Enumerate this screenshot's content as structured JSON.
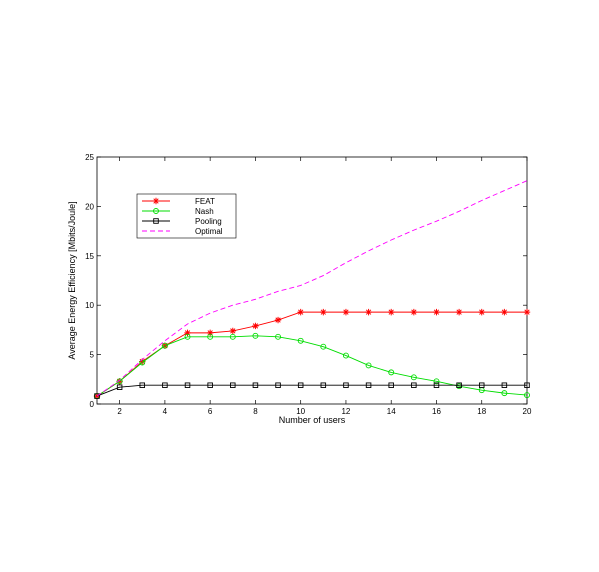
{
  "chart_data": {
    "type": "line",
    "title": "",
    "xlabel": "Number of users",
    "ylabel": "Average Energy Efficiency [Mbits/Joule]",
    "xlim": [
      1,
      20
    ],
    "ylim": [
      0,
      25
    ],
    "xticks": [
      2,
      4,
      6,
      8,
      10,
      12,
      14,
      16,
      18,
      20
    ],
    "yticks": [
      0,
      5,
      10,
      15,
      20,
      25
    ],
    "grid": false,
    "legend_position": "top-left",
    "x": [
      1,
      2,
      3,
      4,
      5,
      6,
      7,
      8,
      9,
      10,
      11,
      12,
      13,
      14,
      15,
      16,
      17,
      18,
      19,
      20
    ],
    "series": [
      {
        "name": "FEAT",
        "color": "#ff0000",
        "marker": "star",
        "dash": "solid",
        "values": [
          0.8,
          2.3,
          4.3,
          5.9,
          7.2,
          7.2,
          7.4,
          7.9,
          8.5,
          9.3,
          9.3,
          9.3,
          9.3,
          9.3,
          9.3,
          9.3,
          9.3,
          9.3,
          9.3,
          9.3
        ]
      },
      {
        "name": "Nash",
        "color": "#00dd00",
        "marker": "circle",
        "dash": "solid",
        "values": [
          0.8,
          2.3,
          4.2,
          5.9,
          6.8,
          6.8,
          6.8,
          6.9,
          6.8,
          6.4,
          5.8,
          4.9,
          3.9,
          3.2,
          2.7,
          2.3,
          1.8,
          1.4,
          1.1,
          0.9
        ]
      },
      {
        "name": "Pooling",
        "color": "#000000",
        "marker": "square",
        "dash": "solid",
        "values": [
          0.8,
          1.7,
          1.9,
          1.9,
          1.9,
          1.9,
          1.9,
          1.9,
          1.9,
          1.9,
          1.9,
          1.9,
          1.9,
          1.9,
          1.9,
          1.9,
          1.9,
          1.9,
          1.9,
          1.9
        ]
      },
      {
        "name": "Optimal",
        "color": "#ff00ff",
        "marker": "none",
        "dash": "dashed",
        "values": [
          0.8,
          2.4,
          4.5,
          6.4,
          8.1,
          9.2,
          10.0,
          10.6,
          11.4,
          12.0,
          13.0,
          14.3,
          15.5,
          16.6,
          17.6,
          18.5,
          19.5,
          20.6,
          21.6,
          22.6
        ]
      }
    ]
  }
}
